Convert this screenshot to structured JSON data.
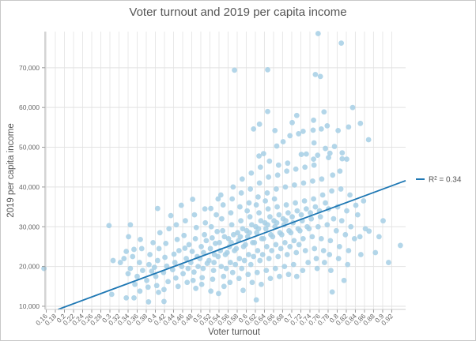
{
  "chart_data": {
    "type": "scatter",
    "title": "Voter turnout and 2019 per capita income",
    "xlabel": "Voter turnout",
    "ylabel": "2019 per capita income",
    "xlim": [
      0.1574,
      0.9505
    ],
    "ylim": [
      9200,
      79100
    ],
    "xticks": [
      "0.16",
      "0.18",
      "0.2",
      "0.22",
      "0.24",
      "0.26",
      "0.28",
      "0.3",
      "0.32",
      "0.34",
      "0.36",
      "0.38",
      "0.4",
      "0.42",
      "0.44",
      "0.46",
      "0.48",
      "0.5",
      "0.52",
      "0.54",
      "0.56",
      "0.58",
      "0.6",
      "0.62",
      "0.64",
      "0.66",
      "0.68",
      "0.7",
      "0.72",
      "0.74",
      "0.76",
      "0.78",
      "0.8",
      "0.82",
      "0.84",
      "0.86",
      "0.88",
      "0.9",
      "0.92"
    ],
    "yticks": [
      "10,000",
      "20,000",
      "30,000",
      "40,000",
      "50,000",
      "60,000",
      "70,000"
    ],
    "grid": true,
    "legend_position": "right",
    "point_color": "#a6cfe5",
    "trendline": {
      "label": "R² = 0.34",
      "r_squared": 0.34,
      "slope": 42380,
      "intercept": 1317,
      "color": "#1f78b4"
    },
    "points": [
      [
        0.758,
        78600
      ],
      [
        0.809,
        76200
      ],
      [
        0.574,
        69400
      ],
      [
        0.647,
        69500
      ],
      [
        0.752,
        68300
      ],
      [
        0.763,
        67800
      ],
      [
        0.834,
        60000
      ],
      [
        0.647,
        59000
      ],
      [
        0.771,
        58900
      ],
      [
        0.711,
        58000
      ],
      [
        0.851,
        56000
      ],
      [
        0.629,
        55800
      ],
      [
        0.748,
        56800
      ],
      [
        0.616,
        54600
      ],
      [
        0.701,
        56200
      ],
      [
        0.663,
        54200
      ],
      [
        0.747,
        54300
      ],
      [
        0.765,
        54600
      ],
      [
        0.778,
        55400
      ],
      [
        0.802,
        54200
      ],
      [
        0.825,
        55100
      ],
      [
        0.869,
        51900
      ],
      [
        0.715,
        53400
      ],
      [
        0.725,
        54000
      ],
      [
        0.696,
        52900
      ],
      [
        0.681,
        51400
      ],
      [
        0.667,
        50300
      ],
      [
        0.749,
        51100
      ],
      [
        0.774,
        49700
      ],
      [
        0.794,
        50200
      ],
      [
        0.628,
        47800
      ],
      [
        0.638,
        48400
      ],
      [
        0.721,
        48200
      ],
      [
        0.732,
        48300
      ],
      [
        0.757,
        48000
      ],
      [
        0.784,
        48500
      ],
      [
        0.811,
        48600
      ],
      [
        0.748,
        47000
      ],
      [
        0.781,
        47400
      ],
      [
        0.811,
        47100
      ],
      [
        0.821,
        47000
      ],
      [
        0.155,
        19500
      ],
      [
        0.298,
        30300
      ],
      [
        0.341,
        27500
      ],
      [
        0.304,
        13000
      ],
      [
        0.385,
        11100
      ],
      [
        0.336,
        12100
      ],
      [
        0.353,
        12100
      ],
      [
        0.366,
        13800
      ],
      [
        0.307,
        21500
      ],
      [
        0.323,
        21000
      ],
      [
        0.331,
        22000
      ],
      [
        0.336,
        23800
      ],
      [
        0.34,
        18200
      ],
      [
        0.353,
        24300
      ],
      [
        0.367,
        26800
      ],
      [
        0.405,
        34600
      ],
      [
        0.457,
        35400
      ],
      [
        0.434,
        32800
      ],
      [
        0.482,
        36900
      ],
      [
        0.345,
        30500
      ],
      [
        0.538,
        37000
      ],
      [
        0.522,
        34600
      ],
      [
        0.939,
        25300
      ],
      [
        0.913,
        21000
      ],
      [
        0.884,
        23500
      ],
      [
        0.87,
        28900
      ],
      [
        0.85,
        27500
      ],
      [
        0.901,
        31500
      ],
      [
        0.892,
        27500
      ],
      [
        0.841,
        35400
      ],
      [
        0.815,
        16500
      ],
      [
        0.789,
        13600
      ],
      [
        0.539,
        13200
      ],
      [
        0.419,
        11200
      ],
      [
        0.622,
        11600
      ],
      [
        0.36,
        17500
      ],
      [
        0.365,
        21000
      ],
      [
        0.372,
        19000
      ],
      [
        0.355,
        15500
      ],
      [
        0.37,
        24500
      ],
      [
        0.345,
        19500
      ],
      [
        0.35,
        22500
      ],
      [
        0.381,
        16500
      ],
      [
        0.386,
        20500
      ],
      [
        0.392,
        18800
      ],
      [
        0.388,
        23000
      ],
      [
        0.384,
        14800
      ],
      [
        0.395,
        26000
      ],
      [
        0.401,
        17500
      ],
      [
        0.405,
        21500
      ],
      [
        0.398,
        19800
      ],
      [
        0.408,
        24500
      ],
      [
        0.403,
        15200
      ],
      [
        0.41,
        28500
      ],
      [
        0.407,
        13500
      ],
      [
        0.418,
        18500
      ],
      [
        0.421,
        22300
      ],
      [
        0.425,
        20100
      ],
      [
        0.428,
        16200
      ],
      [
        0.423,
        25800
      ],
      [
        0.43,
        29500
      ],
      [
        0.419,
        14200
      ],
      [
        0.438,
        19200
      ],
      [
        0.441,
        23100
      ],
      [
        0.445,
        17100
      ],
      [
        0.448,
        26800
      ],
      [
        0.443,
        21000
      ],
      [
        0.45,
        15000
      ],
      [
        0.446,
        30500
      ],
      [
        0.452,
        24000
      ],
      [
        0.458,
        20000
      ],
      [
        0.461,
        18200
      ],
      [
        0.465,
        24600
      ],
      [
        0.468,
        22000
      ],
      [
        0.463,
        27800
      ],
      [
        0.47,
        16000
      ],
      [
        0.466,
        31500
      ],
      [
        0.472,
        19500
      ],
      [
        0.474,
        25500
      ],
      [
        0.478,
        21000
      ],
      [
        0.481,
        23800
      ],
      [
        0.485,
        18600
      ],
      [
        0.488,
        27000
      ],
      [
        0.483,
        16500
      ],
      [
        0.49,
        29800
      ],
      [
        0.486,
        33000
      ],
      [
        0.492,
        22500
      ],
      [
        0.494,
        20000
      ],
      [
        0.489,
        14500
      ],
      [
        0.498,
        22000
      ],
      [
        0.501,
        25000
      ],
      [
        0.505,
        19500
      ],
      [
        0.508,
        28000
      ],
      [
        0.503,
        17200
      ],
      [
        0.51,
        31000
      ],
      [
        0.506,
        23500
      ],
      [
        0.512,
        26500
      ],
      [
        0.514,
        20800
      ],
      [
        0.509,
        34500
      ],
      [
        0.502,
        15500
      ],
      [
        0.518,
        21500
      ],
      [
        0.521,
        24500
      ],
      [
        0.525,
        27200
      ],
      [
        0.528,
        19000
      ],
      [
        0.523,
        30000
      ],
      [
        0.53,
        23000
      ],
      [
        0.526,
        16800
      ],
      [
        0.532,
        25800
      ],
      [
        0.534,
        33000
      ],
      [
        0.529,
        21000
      ],
      [
        0.536,
        28800
      ],
      [
        0.522,
        13800
      ],
      [
        0.538,
        22500
      ],
      [
        0.541,
        26000
      ],
      [
        0.545,
        20000
      ],
      [
        0.548,
        29000
      ],
      [
        0.543,
        24000
      ],
      [
        0.55,
        17500
      ],
      [
        0.546,
        32000
      ],
      [
        0.552,
        27500
      ],
      [
        0.554,
        23000
      ],
      [
        0.549,
        35500
      ],
      [
        0.556,
        19500
      ],
      [
        0.544,
        38000
      ],
      [
        0.551,
        15000
      ],
      [
        0.558,
        23500
      ],
      [
        0.561,
        27000
      ],
      [
        0.565,
        21000
      ],
      [
        0.568,
        30500
      ],
      [
        0.563,
        25000
      ],
      [
        0.57,
        18500
      ],
      [
        0.566,
        33500
      ],
      [
        0.572,
        28000
      ],
      [
        0.574,
        24000
      ],
      [
        0.569,
        37000
      ],
      [
        0.576,
        20500
      ],
      [
        0.564,
        16000
      ],
      [
        0.571,
        40000
      ],
      [
        0.567,
        26000
      ],
      [
        0.578,
        24500
      ],
      [
        0.581,
        28500
      ],
      [
        0.585,
        22000
      ],
      [
        0.588,
        31500
      ],
      [
        0.583,
        26500
      ],
      [
        0.59,
        19500
      ],
      [
        0.586,
        35000
      ],
      [
        0.592,
        29500
      ],
      [
        0.594,
        25000
      ],
      [
        0.589,
        38500
      ],
      [
        0.596,
        21500
      ],
      [
        0.584,
        17000
      ],
      [
        0.591,
        42000
      ],
      [
        0.587,
        27500
      ],
      [
        0.593,
        14000
      ],
      [
        0.598,
        25500
      ],
      [
        0.601,
        29000
      ],
      [
        0.605,
        23000
      ],
      [
        0.608,
        32500
      ],
      [
        0.603,
        27500
      ],
      [
        0.61,
        20500
      ],
      [
        0.606,
        36000
      ],
      [
        0.612,
        30500
      ],
      [
        0.614,
        26000
      ],
      [
        0.609,
        39500
      ],
      [
        0.616,
        22500
      ],
      [
        0.604,
        18000
      ],
      [
        0.611,
        43500
      ],
      [
        0.607,
        28500
      ],
      [
        0.613,
        16000
      ],
      [
        0.602,
        34000
      ],
      [
        0.618,
        26000
      ],
      [
        0.621,
        30000
      ],
      [
        0.625,
        24000
      ],
      [
        0.628,
        33500
      ],
      [
        0.623,
        28500
      ],
      [
        0.63,
        21500
      ],
      [
        0.626,
        37500
      ],
      [
        0.632,
        31500
      ],
      [
        0.634,
        27000
      ],
      [
        0.629,
        41000
      ],
      [
        0.636,
        23000
      ],
      [
        0.624,
        18500
      ],
      [
        0.631,
        45000
      ],
      [
        0.627,
        29500
      ],
      [
        0.633,
        15500
      ],
      [
        0.622,
        35500
      ],
      [
        0.638,
        27000
      ],
      [
        0.641,
        31000
      ],
      [
        0.645,
        25000
      ],
      [
        0.648,
        34500
      ],
      [
        0.643,
        29500
      ],
      [
        0.65,
        22000
      ],
      [
        0.646,
        38500
      ],
      [
        0.652,
        32500
      ],
      [
        0.654,
        28000
      ],
      [
        0.649,
        42500
      ],
      [
        0.656,
        24000
      ],
      [
        0.644,
        19000
      ],
      [
        0.651,
        46500
      ],
      [
        0.647,
        30500
      ],
      [
        0.653,
        17000
      ],
      [
        0.642,
        36500
      ],
      [
        0.658,
        27500
      ],
      [
        0.661,
        31500
      ],
      [
        0.665,
        25500
      ],
      [
        0.668,
        35000
      ],
      [
        0.663,
        30000
      ],
      [
        0.67,
        22500
      ],
      [
        0.666,
        39500
      ],
      [
        0.672,
        33000
      ],
      [
        0.674,
        28500
      ],
      [
        0.669,
        43000
      ],
      [
        0.676,
        24500
      ],
      [
        0.664,
        19500
      ],
      [
        0.671,
        45500
      ],
      [
        0.667,
        31000
      ],
      [
        0.673,
        17500
      ],
      [
        0.662,
        37000
      ],
      [
        0.678,
        28000
      ],
      [
        0.681,
        32000
      ],
      [
        0.685,
        26000
      ],
      [
        0.688,
        35500
      ],
      [
        0.683,
        30500
      ],
      [
        0.69,
        23000
      ],
      [
        0.686,
        40000
      ],
      [
        0.692,
        33500
      ],
      [
        0.694,
        29000
      ],
      [
        0.689,
        44000
      ],
      [
        0.696,
        25000
      ],
      [
        0.684,
        20000
      ],
      [
        0.691,
        46000
      ],
      [
        0.687,
        31500
      ],
      [
        0.693,
        18000
      ],
      [
        0.698,
        28500
      ],
      [
        0.701,
        32500
      ],
      [
        0.705,
        26500
      ],
      [
        0.708,
        36000
      ],
      [
        0.703,
        31000
      ],
      [
        0.71,
        23500
      ],
      [
        0.706,
        40500
      ],
      [
        0.712,
        34000
      ],
      [
        0.714,
        29500
      ],
      [
        0.709,
        44500
      ],
      [
        0.716,
        25500
      ],
      [
        0.704,
        20500
      ],
      [
        0.711,
        17500
      ],
      [
        0.718,
        29000
      ],
      [
        0.721,
        33000
      ],
      [
        0.725,
        27000
      ],
      [
        0.728,
        36500
      ],
      [
        0.723,
        31500
      ],
      [
        0.73,
        24000
      ],
      [
        0.726,
        41000
      ],
      [
        0.732,
        34500
      ],
      [
        0.734,
        30000
      ],
      [
        0.729,
        45000
      ],
      [
        0.736,
        21000
      ],
      [
        0.724,
        19000
      ],
      [
        0.738,
        29500
      ],
      [
        0.741,
        33500
      ],
      [
        0.745,
        27500
      ],
      [
        0.748,
        37000
      ],
      [
        0.743,
        32000
      ],
      [
        0.75,
        24500
      ],
      [
        0.746,
        41500
      ],
      [
        0.752,
        35000
      ],
      [
        0.754,
        22000
      ],
      [
        0.749,
        45500
      ],
      [
        0.756,
        19500
      ],
      [
        0.758,
        30000
      ],
      [
        0.761,
        34000
      ],
      [
        0.765,
        27000
      ],
      [
        0.768,
        38000
      ],
      [
        0.763,
        32500
      ],
      [
        0.77,
        24000
      ],
      [
        0.766,
        42000
      ],
      [
        0.772,
        21000
      ],
      [
        0.774,
        36000
      ],
      [
        0.778,
        30500
      ],
      [
        0.781,
        34500
      ],
      [
        0.785,
        26500
      ],
      [
        0.788,
        39000
      ],
      [
        0.783,
        23000
      ],
      [
        0.79,
        43000
      ],
      [
        0.786,
        19000
      ],
      [
        0.792,
        32000
      ],
      [
        0.798,
        29000
      ],
      [
        0.801,
        35000
      ],
      [
        0.805,
        25000
      ],
      [
        0.808,
        39500
      ],
      [
        0.803,
        22000
      ],
      [
        0.81,
        31500
      ],
      [
        0.806,
        44000
      ],
      [
        0.818,
        28000
      ],
      [
        0.821,
        34000
      ],
      [
        0.825,
        24000
      ],
      [
        0.828,
        38000
      ],
      [
        0.823,
        20500
      ],
      [
        0.83,
        30000
      ],
      [
        0.838,
        27000
      ],
      [
        0.845,
        33000
      ],
      [
        0.852,
        23000
      ],
      [
        0.858,
        36500
      ],
      [
        0.862,
        29500
      ]
    ]
  }
}
